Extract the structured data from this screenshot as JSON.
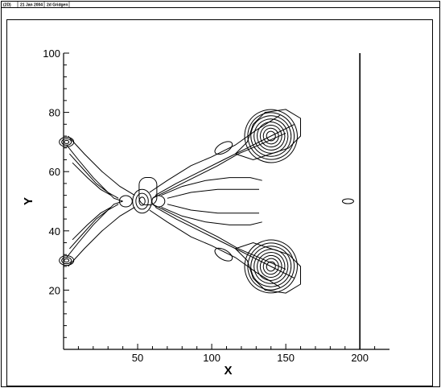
{
  "header": {
    "id": "(2D)",
    "date": "21 Jan 2004",
    "title": "2d Gridgen"
  },
  "chart_data": {
    "type": "contour",
    "title": "",
    "xlabel": "X",
    "ylabel": "Y",
    "xlim": [
      0,
      220
    ],
    "ylim": [
      0,
      100
    ],
    "xticks": [
      50,
      100,
      150,
      200
    ],
    "yticks": [
      20,
      40,
      60,
      80,
      100
    ],
    "grid": false,
    "boundary_line_x": 200,
    "features": [
      {
        "name": "upper-peak",
        "x": 140,
        "y": 72,
        "levels": 8
      },
      {
        "name": "lower-peak",
        "x": 140,
        "y": 28,
        "levels": 8
      },
      {
        "name": "center-lobe",
        "x": 53,
        "y": 50,
        "levels": 3
      },
      {
        "name": "left-upper-edge",
        "x": 2,
        "y": 70,
        "levels": 3
      },
      {
        "name": "left-lower-edge",
        "x": 2,
        "y": 30,
        "levels": 3
      },
      {
        "name": "right-small-loop",
        "x": 192,
        "y": 50,
        "levels": 1
      },
      {
        "name": "upper-small-blob",
        "x": 108,
        "y": 68,
        "levels": 1
      },
      {
        "name": "lower-small-blob",
        "x": 108,
        "y": 32,
        "levels": 1
      }
    ]
  }
}
